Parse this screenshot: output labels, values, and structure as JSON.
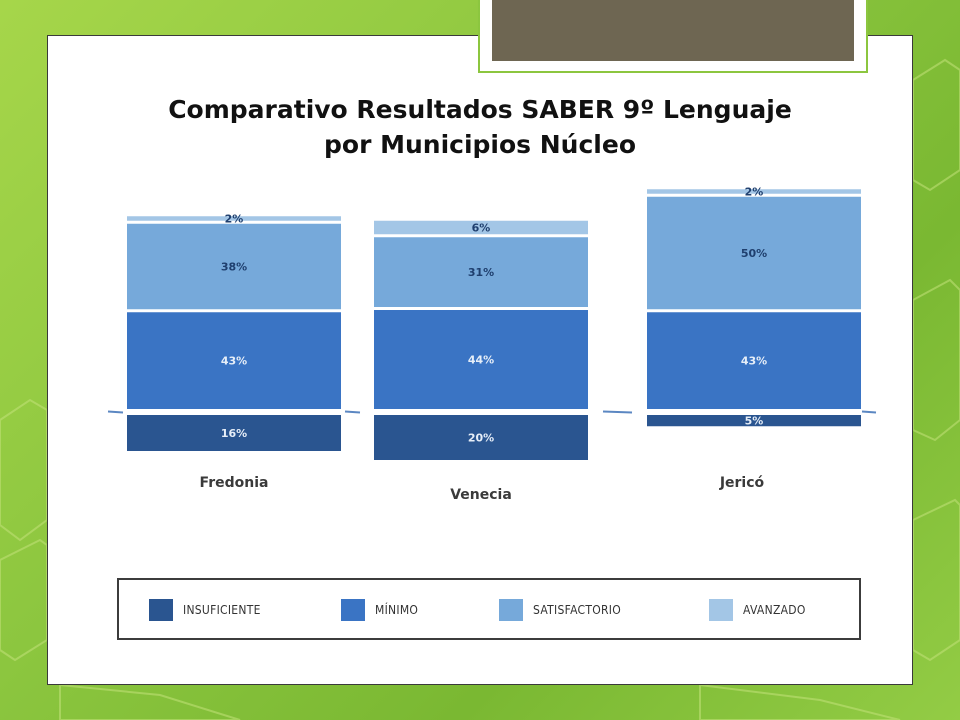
{
  "title": {
    "line1": "Comparativo Resultados SABER 9º Lenguaje",
    "line2": "por  Municipios Núcleo"
  },
  "colors": {
    "insuficiente": "#2a5590",
    "minimo": "#3a74c4",
    "satisfactorio": "#76a9da",
    "avanzado": "#a3c6e6"
  },
  "chart_data": {
    "type": "bar",
    "stacked": true,
    "baseline_split": "Insuficiente below baseline, other levels above",
    "categories": [
      "Fredonia",
      "Venecia",
      "Jericó"
    ],
    "series": [
      {
        "name": "INSUFICIENTE",
        "values": [
          16,
          20,
          5
        ],
        "labels": [
          "16%",
          "20%",
          "5%"
        ]
      },
      {
        "name": "MÍNIMO",
        "values": [
          43,
          44,
          43
        ],
        "labels": [
          "43%",
          "44%",
          "43%"
        ]
      },
      {
        "name": "SATISFACTORIO",
        "values": [
          38,
          31,
          50
        ],
        "labels": [
          "38%",
          "31%",
          "50%"
        ]
      },
      {
        "name": "AVANZADO",
        "values": [
          2,
          6,
          2
        ],
        "labels": [
          "2%",
          "6%",
          "2%"
        ]
      }
    ],
    "legend_position": "bottom",
    "grid": false
  },
  "legend": [
    {
      "key": "insuficiente",
      "label": "INSUFICIENTE"
    },
    {
      "key": "minimo",
      "label": "MÍNIMO"
    },
    {
      "key": "satisfactorio",
      "label": "SATISFACTORIO"
    },
    {
      "key": "avanzado",
      "label": "AVANZADO"
    }
  ]
}
